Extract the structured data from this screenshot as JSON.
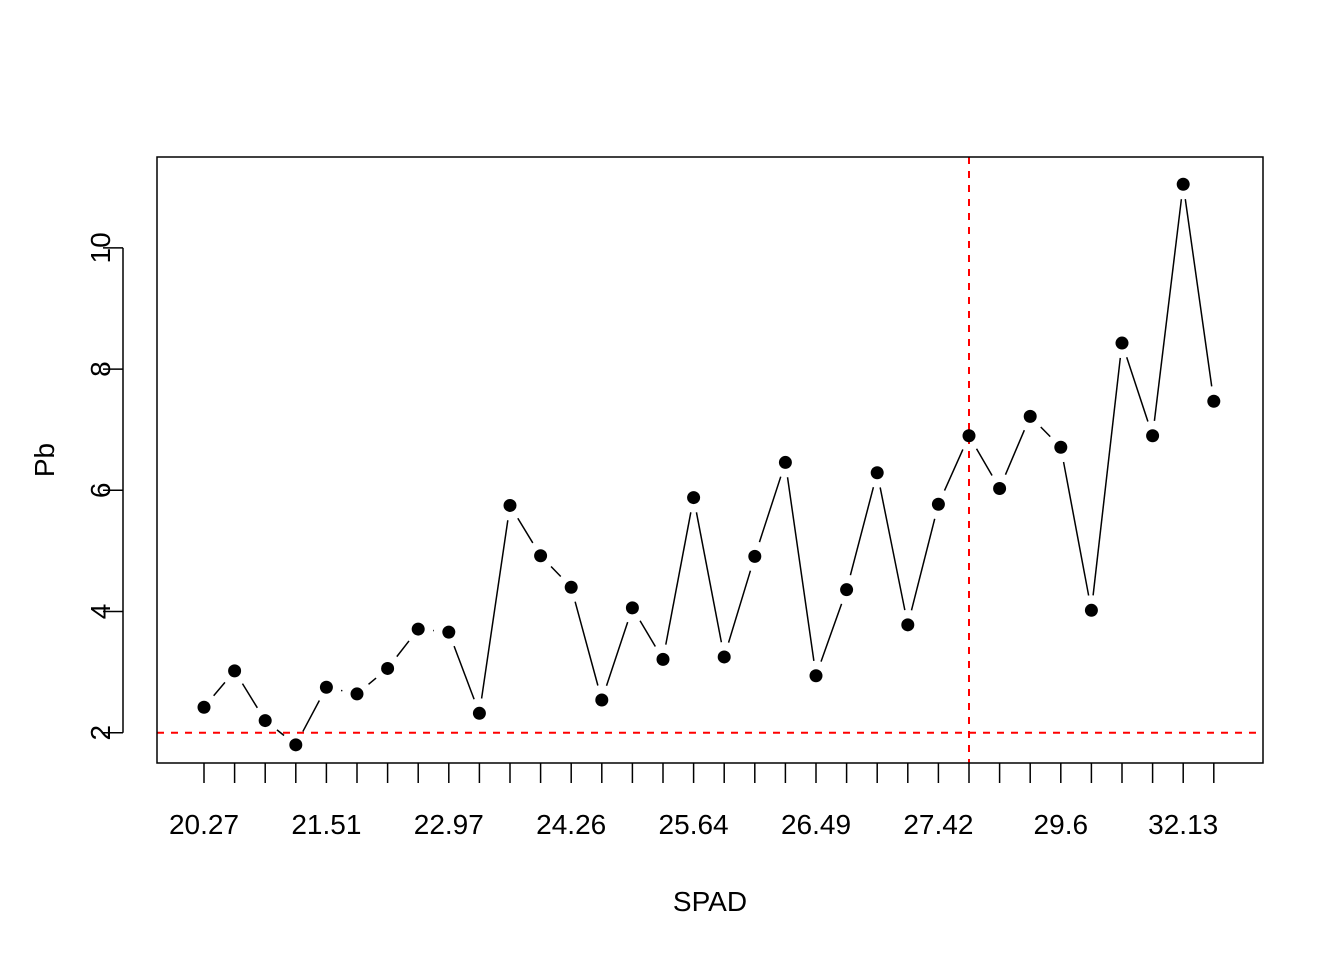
{
  "chart_data": {
    "type": "line",
    "xlabel": "SPAD",
    "ylabel": "Pb",
    "x_tick_labels": [
      "20.27",
      "21.51",
      "22.97",
      "24.26",
      "25.64",
      "26.49",
      "27.42",
      "29.6",
      "32.13"
    ],
    "x_tick_label_every": 4,
    "n_categories": 34,
    "y_ticks": [
      2,
      4,
      6,
      8,
      10
    ],
    "ylim": [
      1.5,
      11.5
    ],
    "grid": false,
    "legend": "none",
    "series": [
      {
        "values": [
          2.42,
          3.02,
          2.2,
          1.8,
          2.75,
          2.64,
          3.06,
          3.71,
          3.66,
          2.32,
          5.75,
          4.92,
          4.4,
          2.54,
          4.06,
          3.21,
          5.88,
          3.25,
          4.91,
          6.46,
          2.94,
          4.36,
          6.29,
          3.78,
          5.77,
          6.9,
          6.03,
          7.22,
          6.71,
          4.02,
          8.43,
          6.9,
          11.05,
          7.47
        ]
      }
    ],
    "reference_lines": {
      "horizontal_y": 2,
      "vertical_index": 25,
      "color": "#ff0000",
      "style": "dashed"
    },
    "colors": {
      "points": "#000000",
      "line": "#000000",
      "reference": "#ff0000"
    }
  }
}
